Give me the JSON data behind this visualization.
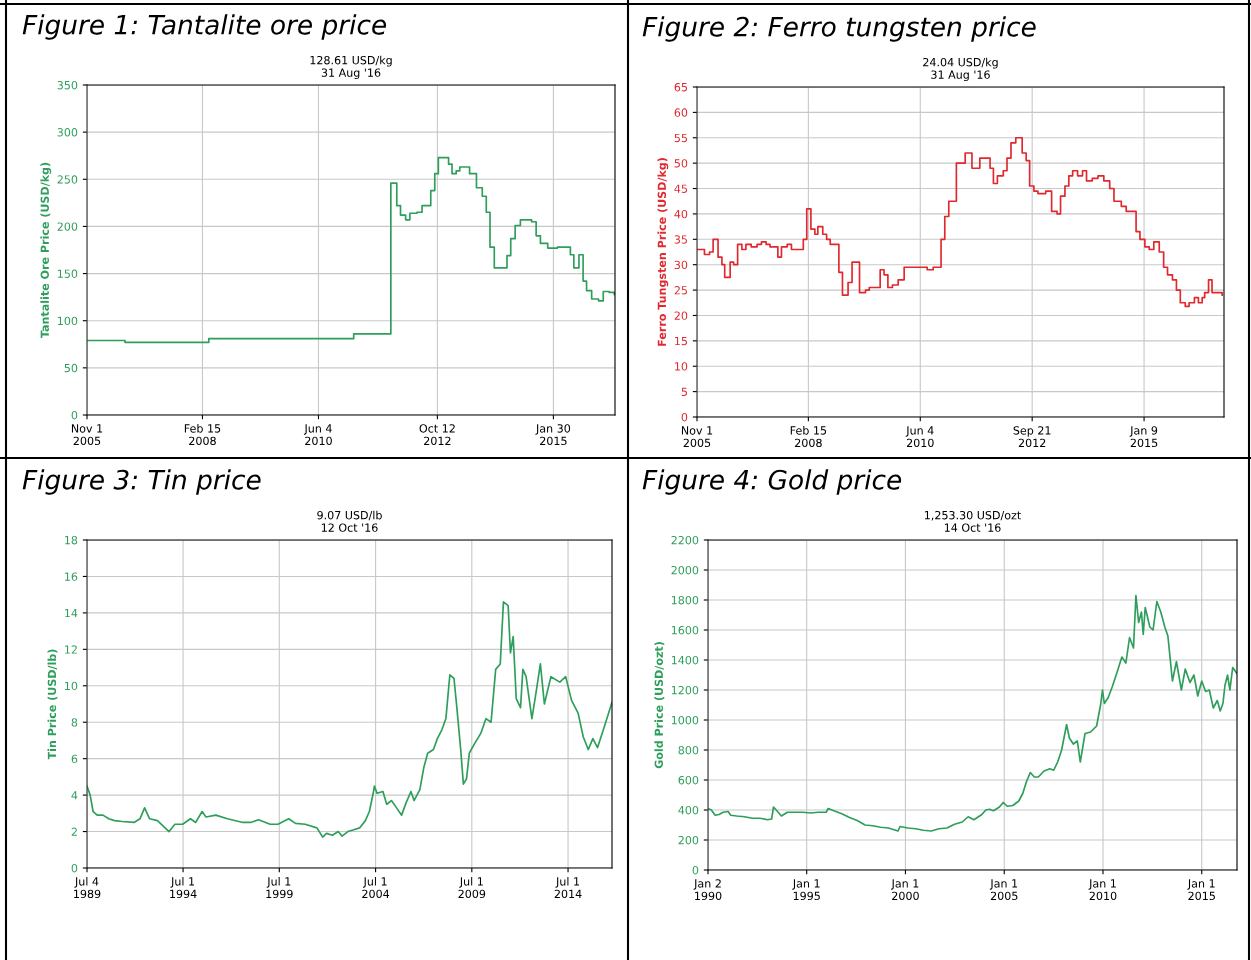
{
  "chart_data": [
    {
      "type": "step",
      "title": "Figure 1: Tantalite ore price",
      "subtitle": "128.61 USD/kg\n31 Aug '16",
      "ylabel": "Tantalite Ore Price (USD/kg)",
      "grid": true,
      "xlim": [
        "2005-11-01",
        "2016-04-20"
      ],
      "xticks": [
        {
          "value": "2005-11-01",
          "label": "Nov 1\n2005"
        },
        {
          "value": "2008-02-15",
          "label": "Feb 15\n2008"
        },
        {
          "value": "2010-06-04",
          "label": "Jun 4\n2010"
        },
        {
          "value": "2012-10-12",
          "label": "Oct 12\n2012"
        },
        {
          "value": "2015-01-30",
          "label": "Jan 30\n2015"
        }
      ],
      "ylim": [
        0,
        350
      ],
      "yticks": [
        0,
        50,
        100,
        150,
        200,
        250,
        300,
        350
      ],
      "series": [
        {
          "color": "#2e9e5b",
          "x": [
            "2005-11-01",
            "2006-08-03",
            "2008-04-01",
            "2011-02-14",
            "2011-11-10",
            "2011-12-23",
            "2012-01-19",
            "2012-02-25",
            "2012-03-27",
            "2012-05-17",
            "2012-06-23",
            "2012-08-25",
            "2012-09-23",
            "2012-10-19",
            "2013-01-01",
            "2013-01-26",
            "2013-02-25",
            "2013-03-23",
            "2013-06-02",
            "2013-07-22",
            "2013-09-02",
            "2013-10-01",
            "2013-10-28",
            "2013-11-28",
            "2014-02-28",
            "2014-03-27",
            "2014-04-28",
            "2014-06-05",
            "2014-08-25",
            "2014-09-27",
            "2014-10-28",
            "2014-12-20",
            "2015-02-28",
            "2015-06-02",
            "2015-06-27",
            "2015-08-03",
            "2015-09-02",
            "2015-09-27",
            "2015-11-03",
            "2015-12-23",
            "2016-01-26",
            "2016-03-09",
            "2016-04-15"
          ],
          "values": [
            79,
            77,
            81,
            86,
            246,
            222,
            212,
            207,
            214,
            215,
            222,
            238,
            256,
            273,
            266,
            256,
            259,
            263,
            256,
            241,
            232,
            215,
            178,
            156,
            169,
            187,
            201,
            207,
            205,
            190,
            182,
            177,
            178,
            170,
            156,
            170,
            142,
            132,
            123,
            121,
            131,
            130,
            128
          ]
        }
      ]
    },
    {
      "type": "step",
      "title": "Figure 2: Ferro tungsten price",
      "subtitle": "24.04 USD/kg\n31 Aug '16",
      "ylabel": "Ferro Tungsten Price (USD/kg)",
      "grid": true,
      "xlim": [
        "2005-11-01",
        "2016-08-31"
      ],
      "xticks": [
        {
          "value": "2005-11-01",
          "label": "Nov 1\n2005"
        },
        {
          "value": "2008-02-15",
          "label": "Feb 15\n2008"
        },
        {
          "value": "2010-06-04",
          "label": "Jun 4\n2010"
        },
        {
          "value": "2012-09-21",
          "label": "Sep 21\n2012"
        },
        {
          "value": "2015-01-09",
          "label": "Jan 9\n2015"
        }
      ],
      "ylim": [
        0,
        65
      ],
      "yticks": [
        0,
        5,
        10,
        15,
        20,
        25,
        30,
        35,
        40,
        45,
        50,
        55,
        60,
        65
      ],
      "series": [
        {
          "color": "#e0282e",
          "x": [
            "2005-11-01",
            "2005-12-27",
            "2006-02-03",
            "2006-03-02",
            "2006-04-08",
            "2006-05-07",
            "2006-05-28",
            "2006-07-08",
            "2006-08-03",
            "2006-09-02",
            "2006-10-04",
            "2006-11-03",
            "2006-12-13",
            "2007-01-26",
            "2007-02-28",
            "2007-04-04",
            "2007-05-03",
            "2007-07-01",
            "2007-07-28",
            "2007-09-09",
            "2007-10-11",
            "2007-12-09",
            "2008-01-08",
            "2008-02-03",
            "2008-03-05",
            "2008-04-04",
            "2008-04-26",
            "2008-06-02",
            "2008-07-01",
            "2008-07-28",
            "2008-10-01",
            "2008-10-28",
            "2008-12-09",
            "2009-01-08",
            "2009-03-05",
            "2009-04-19",
            "2009-05-17",
            "2009-08-07",
            "2009-09-05",
            "2009-10-04",
            "2009-11-07",
            "2009-12-20",
            "2010-02-03",
            "2010-04-28",
            "2010-07-26",
            "2010-09-09",
            "2010-10-08",
            "2010-11-07",
            "2010-12-05",
            "2011-01-04",
            "2011-03-02",
            "2011-05-07",
            "2011-06-27",
            "2011-08-25",
            "2011-11-10",
            "2011-12-05",
            "2012-01-04",
            "2012-02-17",
            "2012-03-16",
            "2012-04-15",
            "2012-05-21",
            "2012-07-08",
            "2012-08-07",
            "2012-09-02",
            "2012-10-04",
            "2012-11-03",
            "2013-01-01",
            "2013-02-14",
            "2013-03-27",
            "2013-04-22",
            "2013-05-25",
            "2013-06-23",
            "2013-07-22",
            "2013-08-28",
            "2013-10-04",
            "2013-11-03",
            "2013-12-16",
            "2014-01-28",
            "2014-03-13",
            "2014-04-26",
            "2014-05-28",
            "2014-07-22",
            "2014-08-28",
            "2014-10-22",
            "2014-11-10",
            "2014-12-09",
            "2015-01-15",
            "2015-02-17",
            "2015-03-23",
            "2015-05-03",
            "2015-06-05",
            "2015-07-04",
            "2015-08-10",
            "2015-09-09",
            "2015-10-08",
            "2015-11-14",
            "2015-12-13",
            "2016-01-22",
            "2016-02-21",
            "2016-03-20",
            "2016-04-08",
            "2016-05-07",
            "2016-06-02",
            "2016-08-17"
          ],
          "values": [
            33,
            32,
            32.5,
            35,
            31.5,
            30,
            27.5,
            30.5,
            30,
            34,
            33,
            34,
            33.5,
            34,
            34.5,
            34,
            33.5,
            31.5,
            33.5,
            34,
            33,
            33,
            35,
            41,
            37,
            36,
            37.5,
            36,
            35,
            34,
            28.5,
            24,
            26.5,
            30.5,
            24.5,
            25,
            25.5,
            29,
            28,
            25.5,
            26,
            27,
            29.5,
            29.5,
            29,
            29.5,
            29.5,
            35,
            39.5,
            42.5,
            50,
            52,
            49,
            51,
            49,
            46,
            47.5,
            48.5,
            51,
            54,
            55,
            52,
            50.5,
            45.5,
            44.5,
            44,
            44.5,
            40.5,
            40,
            43.5,
            45.5,
            47.5,
            48.5,
            47.5,
            48.5,
            46.5,
            47,
            47.5,
            46.5,
            45,
            42.5,
            41.5,
            40.5,
            40.5,
            36.5,
            35,
            33.5,
            33,
            34.5,
            32.5,
            29.5,
            28,
            27,
            25,
            22.5,
            21.8,
            22.5,
            23.5,
            22.5,
            23.5,
            24.5,
            27,
            24.5,
            24
          ]
        }
      ]
    },
    {
      "type": "line",
      "title": "Figure 3: Tin price",
      "subtitle": "9.07 USD/lb\n12 Oct '16",
      "ylabel": "Tin Price (USD/lb)",
      "grid": true,
      "xlim": [
        "1989-07-04",
        "2016-10-12"
      ],
      "xticks": [
        {
          "value": "1989-07-04",
          "label": "Jul 4\n1989"
        },
        {
          "value": "1994-07-01",
          "label": "Jul 1\n1994"
        },
        {
          "value": "1999-07-01",
          "label": "Jul 1\n1999"
        },
        {
          "value": "2004-07-01",
          "label": "Jul 1\n2004"
        },
        {
          "value": "2009-07-01",
          "label": "Jul 1\n2009"
        },
        {
          "value": "2014-07-01",
          "label": "Jul 1\n2014"
        }
      ],
      "ylim": [
        0,
        18
      ],
      "yticks": [
        0,
        2,
        4,
        6,
        8,
        10,
        12,
        14,
        16,
        18
      ],
      "series": [
        {
          "color": "#2e9e5b",
          "x": [
            "1989-07-04",
            "1989-09-02",
            "1989-10-28",
            "1990-01-15",
            "1990-05-03",
            "1990-08-21",
            "1990-12-09",
            "1991-05-07",
            "1991-12-13",
            "1992-04-04",
            "1992-07-01",
            "1992-10-04",
            "1993-03-02",
            "1993-06-20",
            "1993-10-08",
            "1994-01-28",
            "1994-06-23",
            "1994-11-17",
            "1995-02-25",
            "1995-06-27",
            "1995-09-09",
            "1996-03-13",
            "1996-10-19",
            "1997-08-10",
            "1998-01-04",
            "1998-06-02",
            "1999-01-08",
            "1999-06-05",
            "1999-12-27",
            "2000-05-03",
            "2000-11-03",
            "2001-06-13",
            "2001-10-01",
            "2001-12-13",
            "2002-04-04",
            "2002-07-22",
            "2002-10-04",
            "2003-01-22",
            "2003-05-14",
            "2003-09-02",
            "2003-12-20",
            "2004-03-05",
            "2004-05-17",
            "2004-06-09",
            "2004-07-28",
            "2004-11-17",
            "2005-01-28",
            "2005-04-28",
            "2005-08-03",
            "2005-11-07",
            "2006-02-03",
            "2006-05-03",
            "2006-07-01",
            "2006-10-19",
            "2007-01-01",
            "2007-03-16",
            "2007-07-04",
            "2007-09-16",
            "2007-12-13",
            "2008-02-25",
            "2008-05-10",
            "2008-07-28",
            "2008-09-20",
            "2008-12-02",
            "2009-01-22",
            "2009-03-23",
            "2009-05-14",
            "2009-08-17",
            "2009-12-20",
            "2010-03-27",
            "2010-07-01",
            "2010-09-27",
            "2010-12-23",
            "2011-02-21",
            "2011-05-21",
            "2011-07-04",
            "2011-08-25",
            "2011-10-22",
            "2012-01-11",
            "2012-02-25",
            "2012-04-26",
            "2012-08-14",
            "2012-11-10",
            "2013-01-22",
            "2013-04-08",
            "2013-08-10",
            "2014-01-26",
            "2014-05-17",
            "2014-09-05",
            "2015-01-08",
            "2015-04-15",
            "2015-07-19",
            "2015-10-15",
            "2016-01-11",
            "2016-05-25",
            "2016-10-12"
          ],
          "values": [
            4.5,
            4,
            3.1,
            2.9,
            2.9,
            2.7,
            2.6,
            2.55,
            2.5,
            2.7,
            3.3,
            2.7,
            2.6,
            2.3,
            2.0,
            2.4,
            2.4,
            2.7,
            2.5,
            3.1,
            2.8,
            2.9,
            2.7,
            2.5,
            2.5,
            2.65,
            2.4,
            2.4,
            2.7,
            2.45,
            2.4,
            2.2,
            1.7,
            1.9,
            1.8,
            2.0,
            1.75,
            2.0,
            2.1,
            2.2,
            2.6,
            3.1,
            4.1,
            4.5,
            4.1,
            4.2,
            3.5,
            3.7,
            3.3,
            2.9,
            3.6,
            4.2,
            3.7,
            4.3,
            5.5,
            6.3,
            6.5,
            7.1,
            7.6,
            8.2,
            10.6,
            10.4,
            8.8,
            6.5,
            4.6,
            4.9,
            6.3,
            6.8,
            7.4,
            8.2,
            8.0,
            10.9,
            11.2,
            14.6,
            14.4,
            11.8,
            12.7,
            9.3,
            8.8,
            10.9,
            10.5,
            8.2,
            9.8,
            11.2,
            9.0,
            10.5,
            10.2,
            10.5,
            9.2,
            8.5,
            7.2,
            6.5,
            7.1,
            6.6,
            7.8,
            9.1
          ]
        }
      ]
    },
    {
      "type": "line",
      "title": "Figure 4: Gold price",
      "subtitle": "1,253.30 USD/ozt\n14 Oct '16",
      "ylabel": "Gold Price (USD/ozt)",
      "grid": true,
      "xlim": [
        "1990-01-02",
        "2016-10-14"
      ],
      "xticks": [
        {
          "value": "1990-01-02",
          "label": "Jan 2\n1990"
        },
        {
          "value": "1995-01-01",
          "label": "Jan 1\n1995"
        },
        {
          "value": "2000-01-01",
          "label": "Jan 1\n2000"
        },
        {
          "value": "2005-01-01",
          "label": "Jan 1\n2005"
        },
        {
          "value": "2010-01-01",
          "label": "Jan 1\n2010"
        },
        {
          "value": "2015-01-01",
          "label": "Jan 1\n2015"
        }
      ],
      "ylim": [
        0,
        2200
      ],
      "yticks": [
        0,
        200,
        400,
        600,
        800,
        1000,
        1200,
        1400,
        1600,
        1800,
        2000,
        2200
      ],
      "series": [
        {
          "color": "#2e9e5b",
          "x": [
            "1990-01-02",
            "1990-03-05",
            "1990-05-14",
            "1990-07-26",
            "1990-10-08",
            "1991-01-08",
            "1991-02-28",
            "1991-06-16",
            "1991-11-07",
            "1992-04-01",
            "1992-08-21",
            "1993-01-11",
            "1993-03-23",
            "1993-04-28",
            "1993-07-11",
            "1993-09-20",
            "1994-01-08",
            "1994-05-28",
            "1994-10-22",
            "1995-03-13",
            "1995-08-03",
            "1995-12-27",
            "1996-02-03",
            "1996-05-17",
            "1996-10-11",
            "1997-03-02",
            "1997-07-22",
            "1997-12-16",
            "1998-05-07",
            "1998-10-01",
            "1999-02-21",
            "1999-08-17",
            "1999-09-23",
            "2000-02-17",
            "2000-07-08",
            "2000-11-28",
            "2001-04-22",
            "2001-09-13",
            "2002-02-07",
            "2002-06-27",
            "2002-11-17",
            "2003-03-05",
            "2003-06-20",
            "2003-11-14",
            "2004-01-26",
            "2004-04-04",
            "2004-06-16",
            "2004-10-04",
            "2004-12-13",
            "2005-02-25",
            "2005-06-09",
            "2005-09-27",
            "2005-12-09",
            "2006-02-17",
            "2006-04-28",
            "2006-07-11",
            "2006-09-23",
            "2007-01-08",
            "2007-04-26",
            "2007-07-04",
            "2007-09-16",
            "2007-11-28",
            "2008-02-28",
            "2008-04-19",
            "2008-07-01",
            "2008-09-13",
            "2008-11-07",
            "2009-02-03",
            "2009-05-17",
            "2009-09-05",
            "2009-11-17",
            "2009-12-23",
            "2010-01-26",
            "2010-04-08",
            "2010-06-20",
            "2010-09-02",
            "2010-12-16",
            "2011-02-28",
            "2011-05-07",
            "2011-07-19",
            "2011-09-02",
            "2011-10-22",
            "2011-12-13",
            "2012-01-15",
            "2012-02-21",
            "2012-05-17",
            "2012-07-15",
            "2012-09-23",
            "2012-12-05",
            "2013-02-17",
            "2013-04-15",
            "2013-07-08",
            "2013-09-20",
            "2013-12-20",
            "2014-03-02",
            "2014-05-28",
            "2014-08-10",
            "2014-10-19",
            "2015-01-01",
            "2015-03-13",
            "2015-05-21",
            "2015-08-03",
            "2015-10-15",
            "2015-12-09",
            "2016-01-28",
            "2016-03-05",
            "2016-04-22",
            "2016-06-05",
            "2016-07-26",
            "2016-10-14"
          ],
          "values": [
            410,
            400,
            365,
            370,
            385,
            390,
            365,
            360,
            355,
            345,
            345,
            335,
            340,
            420,
            390,
            360,
            385,
            385,
            385,
            380,
            385,
            385,
            410,
            395,
            375,
            350,
            330,
            300,
            295,
            285,
            280,
            260,
            290,
            280,
            275,
            265,
            260,
            275,
            280,
            305,
            320,
            355,
            335,
            370,
            400,
            405,
            395,
            420,
            450,
            425,
            430,
            460,
            510,
            590,
            650,
            620,
            620,
            660,
            675,
            665,
            720,
            800,
            970,
            880,
            840,
            860,
            720,
            910,
            920,
            960,
            1100,
            1200,
            1110,
            1150,
            1220,
            1300,
            1420,
            1380,
            1550,
            1480,
            1830,
            1650,
            1720,
            1570,
            1750,
            1620,
            1600,
            1790,
            1720,
            1620,
            1560,
            1260,
            1390,
            1200,
            1340,
            1250,
            1300,
            1160,
            1260,
            1190,
            1200,
            1080,
            1130,
            1060,
            1110,
            1230,
            1300,
            1200,
            1350,
            1310
          ]
        }
      ]
    }
  ]
}
